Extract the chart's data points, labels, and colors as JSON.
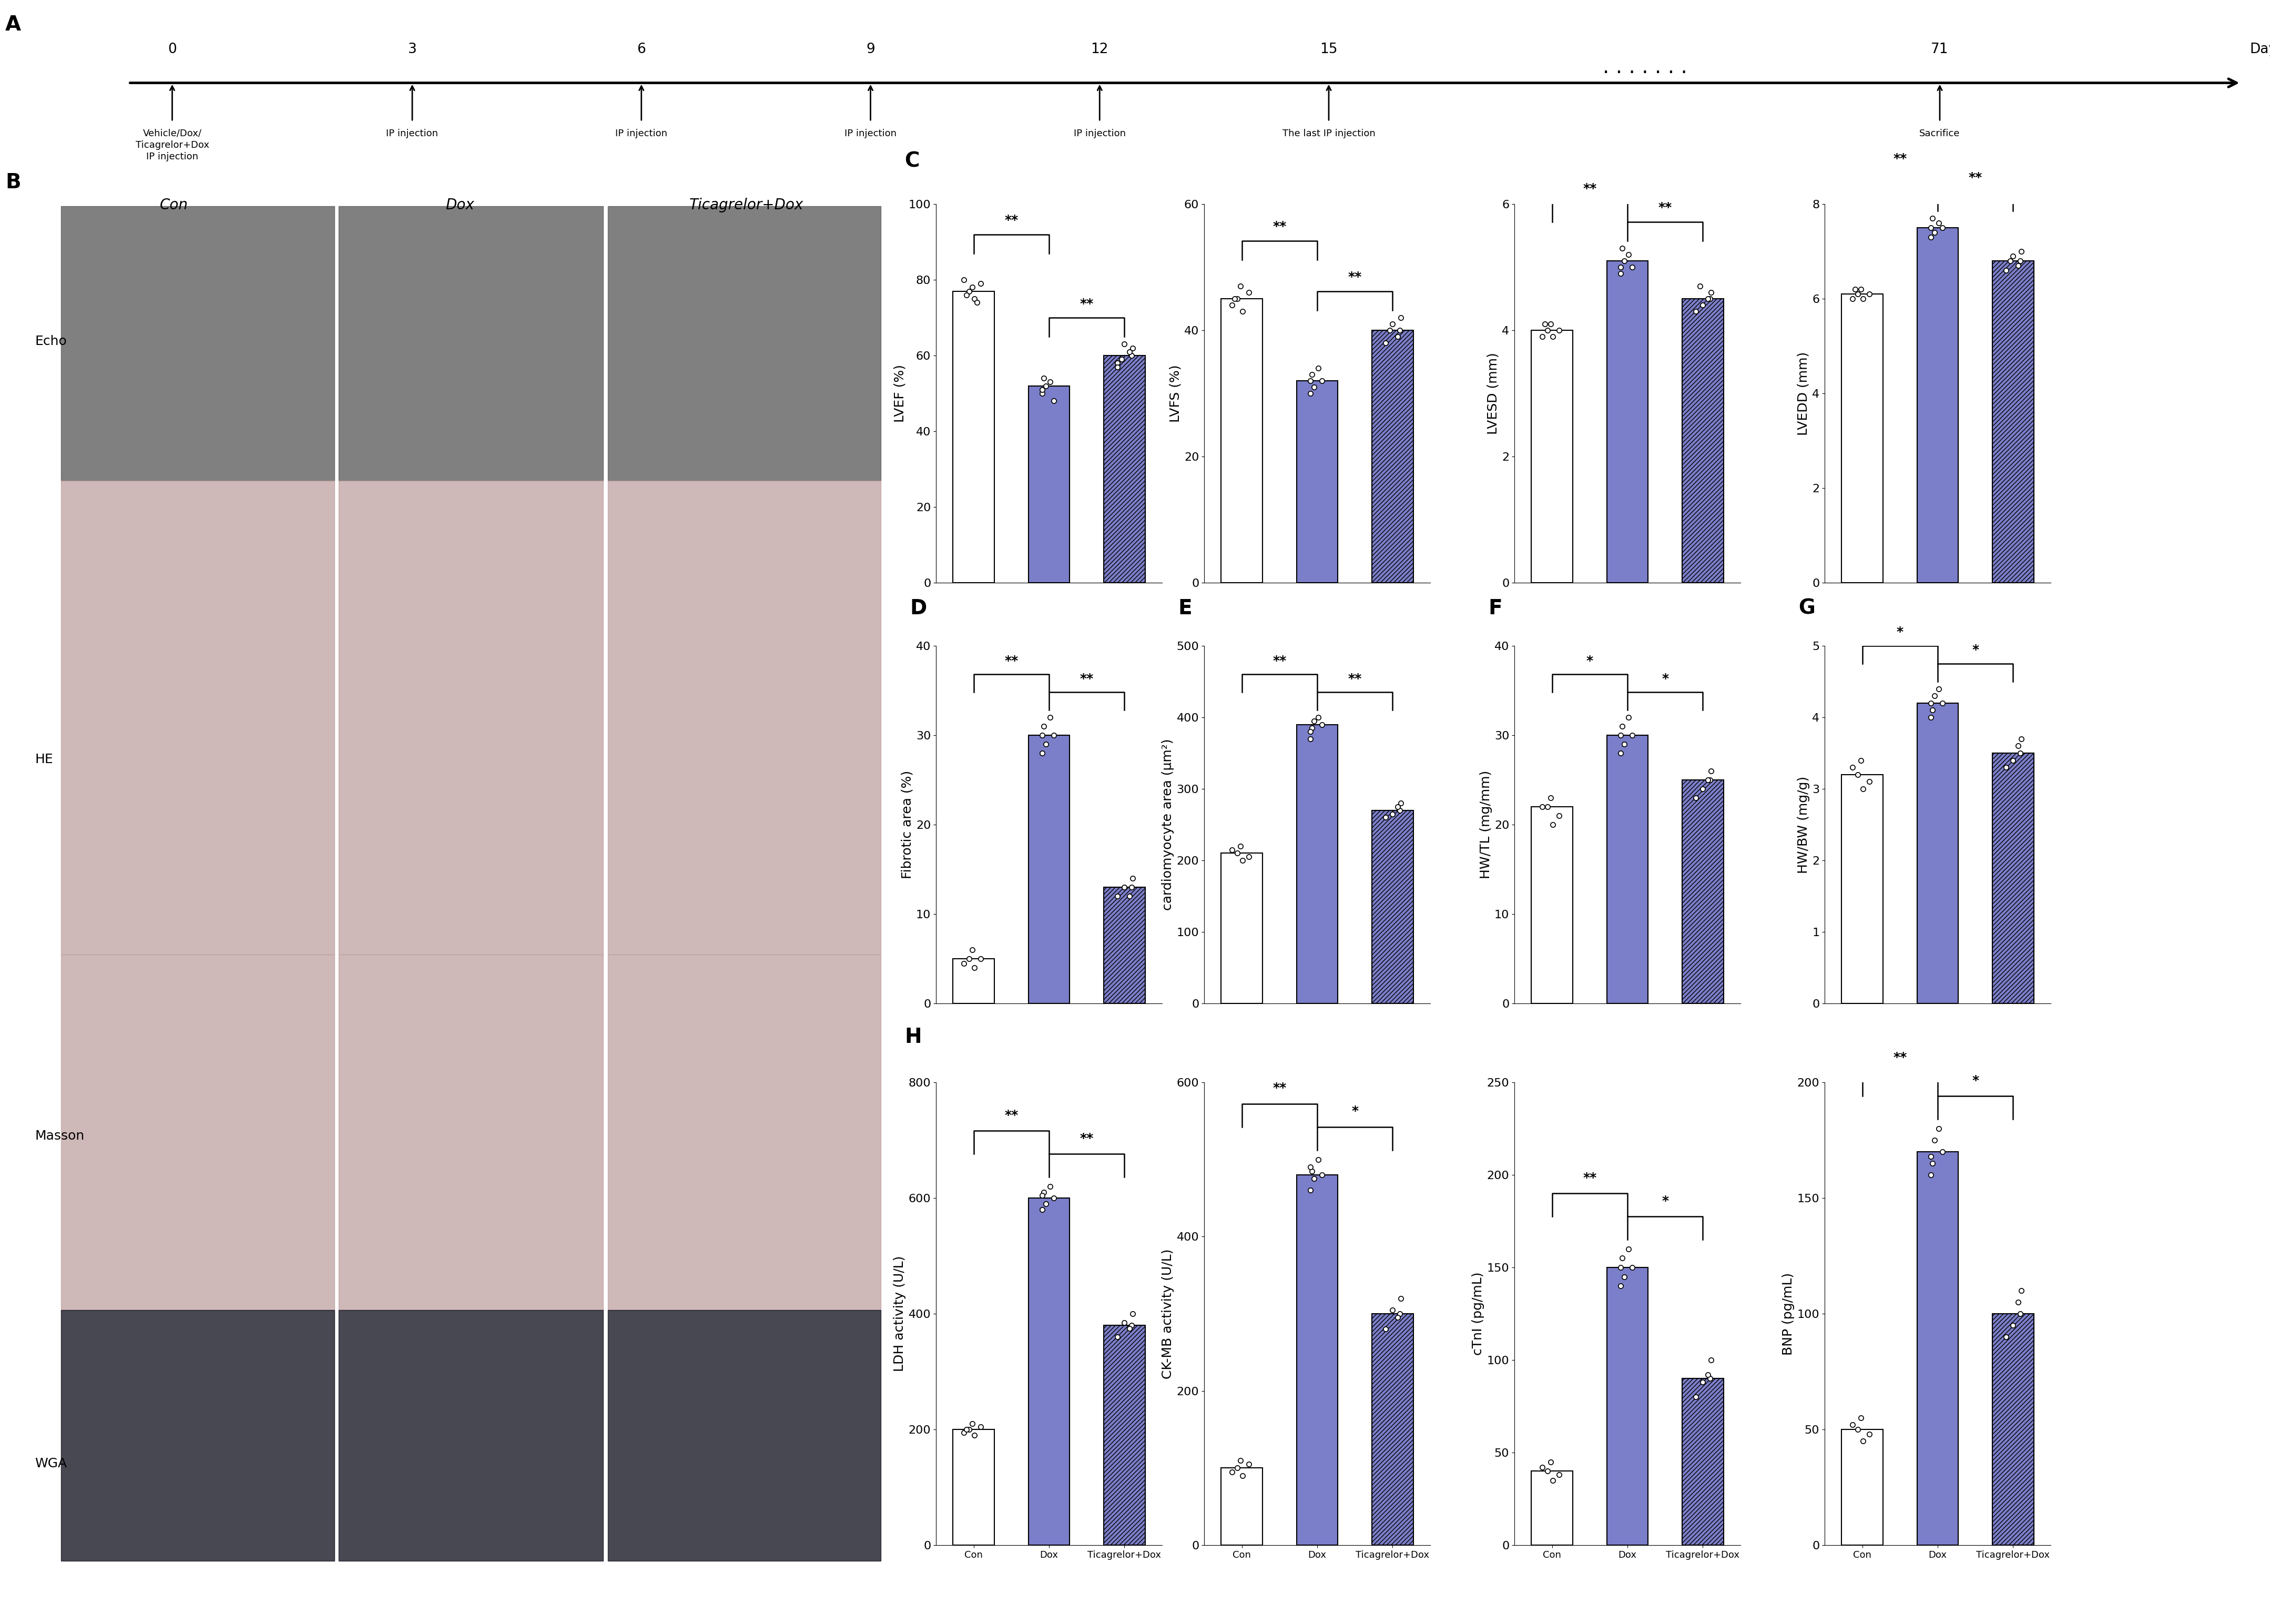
{
  "timeline": {
    "days": [
      0,
      3,
      6,
      9,
      12,
      15,
      71
    ],
    "day_positions": [
      0.05,
      0.16,
      0.265,
      0.37,
      0.475,
      0.58,
      0.86
    ],
    "descriptions": [
      "Vehicle/Dox/\nTicagrelor+Dox\nIP injection",
      "IP injection",
      "IP injection",
      "IP injection",
      "IP injection",
      "The last IP injection",
      "Sacrifice"
    ]
  },
  "panel_C": {
    "LVEF": {
      "ylabel": "LVEF (%)",
      "ylim": [
        0,
        100
      ],
      "yticks": [
        0,
        20,
        40,
        60,
        80,
        100
      ],
      "bars": [
        77,
        52,
        60
      ],
      "bar_colors": [
        "#ffffff",
        "#7b7ec8",
        "#7b7ec8"
      ],
      "bar_hatch": [
        null,
        null,
        "////"
      ],
      "dots": [
        [
          75,
          77,
          78,
          79,
          80,
          76,
          74
        ],
        [
          50,
          48,
          53,
          54,
          52,
          51
        ],
        [
          58,
          60,
          62,
          63,
          61,
          59,
          57
        ]
      ],
      "significance": [
        [
          "**",
          0,
          1
        ],
        [
          "**",
          1,
          2
        ]
      ]
    },
    "LVFS": {
      "ylabel": "LVFS (%)",
      "ylim": [
        0,
        60
      ],
      "yticks": [
        0,
        20,
        40,
        60
      ],
      "bars": [
        45,
        32,
        40
      ],
      "bar_colors": [
        "#ffffff",
        "#7b7ec8",
        "#7b7ec8"
      ],
      "bar_hatch": [
        null,
        null,
        "////"
      ],
      "dots": [
        [
          43,
          45,
          47,
          46,
          44,
          45
        ],
        [
          30,
          32,
          34,
          33,
          31,
          32
        ],
        [
          38,
          40,
          42,
          41,
          39,
          40
        ]
      ],
      "significance": [
        [
          "**",
          0,
          1
        ],
        [
          "**",
          1,
          2
        ]
      ]
    },
    "LVESD": {
      "ylabel": "LVESD (mm)",
      "ylim": [
        0,
        6
      ],
      "yticks": [
        0,
        2,
        4,
        6
      ],
      "bars": [
        4.0,
        5.1,
        4.5
      ],
      "bar_colors": [
        "#ffffff",
        "#7b7ec8",
        "#7b7ec8"
      ],
      "bar_hatch": [
        null,
        null,
        "////"
      ],
      "dots": [
        [
          3.9,
          4.0,
          4.1,
          4.0,
          3.9,
          4.1
        ],
        [
          4.9,
          5.0,
          5.2,
          5.3,
          5.1,
          5.0
        ],
        [
          4.3,
          4.5,
          4.6,
          4.4,
          4.5,
          4.7
        ]
      ],
      "significance": [
        [
          "**",
          0,
          1
        ],
        [
          "**",
          1,
          2
        ]
      ]
    },
    "LVEDD": {
      "ylabel": "LVEDD (mm)",
      "ylim": [
        0,
        8
      ],
      "yticks": [
        0,
        2,
        4,
        6,
        8
      ],
      "bars": [
        6.1,
        7.5,
        6.8
      ],
      "bar_colors": [
        "#ffffff",
        "#7b7ec8",
        "#7b7ec8"
      ],
      "bar_hatch": [
        null,
        null,
        "////"
      ],
      "dots": [
        [
          6.0,
          6.1,
          6.2,
          6.1,
          6.0,
          6.2
        ],
        [
          7.3,
          7.5,
          7.6,
          7.7,
          7.4,
          7.5
        ],
        [
          6.6,
          6.8,
          7.0,
          6.9,
          6.7,
          6.8
        ]
      ],
      "significance": [
        [
          "**",
          0,
          1
        ],
        [
          "**",
          1,
          2
        ]
      ]
    }
  },
  "panel_D": {
    "ylabel": "Fibrotic area (%)",
    "ylim": [
      0,
      40
    ],
    "yticks": [
      0,
      10,
      20,
      30,
      40
    ],
    "bars": [
      5,
      30,
      13
    ],
    "bar_colors": [
      "#ffffff",
      "#7b7ec8",
      "#7b7ec8"
    ],
    "bar_hatch": [
      null,
      null,
      "////"
    ],
    "dots": [
      [
        4,
        5,
        6,
        5,
        4.5
      ],
      [
        28,
        30,
        32,
        31,
        29,
        30
      ],
      [
        12,
        13,
        14,
        13,
        12
      ]
    ],
    "significance": [
      [
        "**",
        0,
        1
      ],
      [
        "**",
        1,
        2
      ]
    ]
  },
  "panel_E": {
    "ylabel": "cardiomyocyte area (μm²)",
    "ylim": [
      0,
      500
    ],
    "yticks": [
      0,
      100,
      200,
      300,
      400,
      500
    ],
    "bars": [
      210,
      390,
      270
    ],
    "bar_colors": [
      "#ffffff",
      "#7b7ec8",
      "#7b7ec8"
    ],
    "bar_hatch": [
      null,
      null,
      "////"
    ],
    "dots": [
      [
        200,
        210,
        220,
        205,
        215
      ],
      [
        370,
        390,
        400,
        385,
        395,
        380
      ],
      [
        260,
        270,
        280,
        265,
        275
      ]
    ],
    "significance": [
      [
        "**",
        0,
        1
      ],
      [
        "**",
        1,
        2
      ]
    ]
  },
  "panel_F": {
    "ylabel": "HW/TL (mg/mm)",
    "ylim": [
      0,
      40
    ],
    "yticks": [
      0,
      10,
      20,
      30,
      40
    ],
    "bars": [
      22,
      30,
      25
    ],
    "bar_colors": [
      "#ffffff",
      "#7b7ec8",
      "#7b7ec8"
    ],
    "bar_hatch": [
      null,
      null,
      "////"
    ],
    "dots": [
      [
        20,
        22,
        23,
        21,
        22
      ],
      [
        28,
        30,
        32,
        31,
        29,
        30
      ],
      [
        23,
        25,
        26,
        24,
        25
      ]
    ],
    "significance": [
      [
        "*",
        0,
        1
      ],
      [
        "*",
        1,
        2
      ]
    ]
  },
  "panel_G": {
    "ylabel": "HW/BW (mg/g)",
    "ylim": [
      0,
      5
    ],
    "yticks": [
      0,
      1,
      2,
      3,
      4,
      5
    ],
    "bars": [
      3.2,
      4.2,
      3.5
    ],
    "bar_colors": [
      "#ffffff",
      "#7b7ec8",
      "#7b7ec8"
    ],
    "bar_hatch": [
      null,
      null,
      "////"
    ],
    "dots": [
      [
        3.0,
        3.2,
        3.4,
        3.1,
        3.3
      ],
      [
        4.0,
        4.2,
        4.4,
        4.1,
        4.3,
        4.2
      ],
      [
        3.3,
        3.5,
        3.7,
        3.4,
        3.6
      ]
    ],
    "significance": [
      [
        "*",
        0,
        1
      ],
      [
        "*",
        1,
        2
      ]
    ]
  },
  "panel_H": {
    "LDH": {
      "ylabel": "LDH activity (U/L)",
      "ylim": [
        0,
        800
      ],
      "yticks": [
        0,
        200,
        400,
        600,
        800
      ],
      "bars": [
        200,
        600,
        380
      ],
      "bar_colors": [
        "#ffffff",
        "#7b7ec8",
        "#7b7ec8"
      ],
      "bar_hatch": [
        null,
        null,
        "////"
      ],
      "dots": [
        [
          190,
          200,
          210,
          205,
          195,
          200
        ],
        [
          580,
          600,
          620,
          610,
          590,
          605
        ],
        [
          360,
          380,
          400,
          385,
          375
        ]
      ],
      "significance": [
        [
          "**",
          0,
          1
        ],
        [
          "**",
          1,
          2
        ]
      ],
      "xlabel_groups": [
        "Con",
        "Dox",
        "Ticagrelor+Dox"
      ]
    },
    "CK-MB": {
      "ylabel": "CK-MB activity (U/L)",
      "ylim": [
        0,
        600
      ],
      "yticks": [
        0,
        200,
        400,
        600
      ],
      "bars": [
        100,
        480,
        300
      ],
      "bar_colors": [
        "#ffffff",
        "#7b7ec8",
        "#7b7ec8"
      ],
      "bar_hatch": [
        null,
        null,
        "////"
      ],
      "dots": [
        [
          90,
          100,
          110,
          105,
          95
        ],
        [
          460,
          480,
          500,
          485,
          475,
          490
        ],
        [
          280,
          300,
          320,
          305,
          295
        ]
      ],
      "significance": [
        [
          "**",
          0,
          1
        ],
        [
          "*",
          1,
          2
        ]
      ],
      "xlabel_groups": [
        "Con",
        "Dox",
        "Ticagrelor+Dox"
      ]
    },
    "cTnI": {
      "ylabel": "cTnI (pg/mL)",
      "ylim": [
        0,
        250
      ],
      "yticks": [
        0,
        50,
        100,
        150,
        200,
        250
      ],
      "bars": [
        40,
        150,
        90
      ],
      "bar_colors": [
        "#ffffff",
        "#7b7ec8",
        "#7b7ec8"
      ],
      "bar_hatch": [
        null,
        null,
        "////"
      ],
      "dots": [
        [
          35,
          40,
          45,
          38,
          42
        ],
        [
          140,
          150,
          160,
          155,
          145,
          150
        ],
        [
          80,
          90,
          100,
          88,
          92
        ]
      ],
      "significance": [
        [
          "**",
          0,
          1
        ],
        [
          "*",
          1,
          2
        ]
      ],
      "xlabel_groups": [
        "Con",
        "Dox",
        "Ticagrelor+Dox"
      ]
    },
    "BNP": {
      "ylabel": "BNP (pg/mL)",
      "ylim": [
        0,
        200
      ],
      "yticks": [
        0,
        50,
        100,
        150,
        200
      ],
      "bars": [
        50,
        170,
        100
      ],
      "bar_colors": [
        "#ffffff",
        "#7b7ec8",
        "#7b7ec8"
      ],
      "bar_hatch": [
        null,
        null,
        "////"
      ],
      "dots": [
        [
          45,
          50,
          55,
          48,
          52
        ],
        [
          160,
          170,
          180,
          165,
          175,
          168
        ],
        [
          90,
          100,
          110,
          95,
          105
        ]
      ],
      "significance": [
        [
          "**",
          0,
          1
        ],
        [
          "*",
          1,
          2
        ]
      ],
      "xlabel_groups": [
        "Con",
        "Dox",
        "Ticagrelor+Dox"
      ]
    }
  },
  "bar_width": 0.55,
  "bar_color_solid": "#7b7ec8",
  "bar_color_white": "#ffffff",
  "label_fontsize": 18,
  "tick_fontsize": 16,
  "sig_fontsize": 18,
  "panel_label_fontsize": 28
}
